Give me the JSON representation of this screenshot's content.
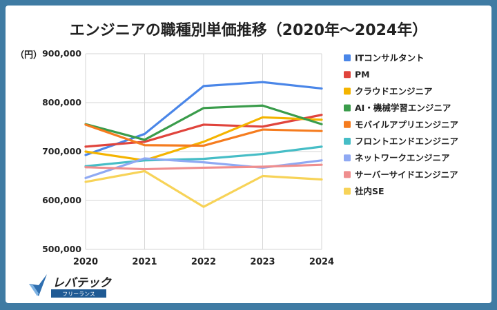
{
  "chart_data": {
    "type": "line",
    "title": "エンジニアの職種別単価推移（2020年～2024年）",
    "unit_label": "（円）",
    "x": [
      "2020",
      "2021",
      "2022",
      "2023",
      "2024"
    ],
    "ylim": [
      500000,
      900000
    ],
    "yticks": [
      "900,000",
      "800,000",
      "700,000",
      "600,000",
      "500,000"
    ],
    "ytick_values": [
      900000,
      800000,
      700000,
      600000,
      500000
    ],
    "grid": true,
    "legend_position": "right",
    "series": [
      {
        "name": "ITコンサルタント",
        "color": "#4a86e8",
        "values": [
          693000,
          736000,
          834000,
          842000,
          829000
        ]
      },
      {
        "name": "PM",
        "color": "#e0443c",
        "values": [
          710000,
          720000,
          755000,
          751000,
          775000
        ]
      },
      {
        "name": "クラウドエンジニア",
        "color": "#f4b400",
        "values": [
          700000,
          682000,
          720000,
          770000,
          765000
        ]
      },
      {
        "name": "AI・機械学習エンジニア",
        "color": "#3a9c4b",
        "values": [
          756000,
          724000,
          789000,
          794000,
          756000
        ]
      },
      {
        "name": "モバイルアプリエンジニア",
        "color": "#f57c1f",
        "values": [
          755000,
          713000,
          712000,
          745000,
          742000
        ]
      },
      {
        "name": "フロントエンドエンジニア",
        "color": "#46bdc6",
        "values": [
          670000,
          682000,
          685000,
          695000,
          710000
        ]
      },
      {
        "name": "ネットワークエンジニア",
        "color": "#8fa9f3",
        "values": [
          646000,
          686000,
          678000,
          667000,
          682000
        ]
      },
      {
        "name": "サーバーサイドエンジニア",
        "color": "#ef8e8e",
        "values": [
          668000,
          664000,
          667000,
          669000,
          673000
        ]
      },
      {
        "name": "社内SE",
        "color": "#f7d358",
        "values": [
          638000,
          660000,
          587000,
          650000,
          643000
        ]
      }
    ]
  },
  "logo": {
    "brand": "レバテック",
    "sub": "フリーランス"
  }
}
